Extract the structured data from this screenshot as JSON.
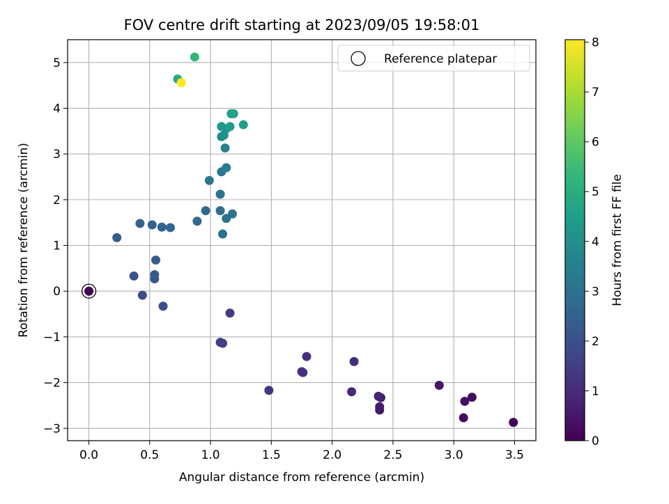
{
  "chart_data": {
    "type": "scatter",
    "title": "FOV centre drift starting at 2023/09/05 19:58:01",
    "xlabel": "Angular distance from reference (arcmin)",
    "ylabel": "Rotation from reference (arcmin)",
    "xlim": [
      -0.175,
      3.675
    ],
    "ylim": [
      -3.27,
      5.5
    ],
    "xticks": [
      0.0,
      0.5,
      1.0,
      1.5,
      2.0,
      2.5,
      3.0,
      3.5
    ],
    "xtick_labels": [
      "0.0",
      "0.5",
      "1.0",
      "1.5",
      "2.0",
      "2.5",
      "3.0",
      "3.5"
    ],
    "yticks": [
      -3,
      -2,
      -1,
      0,
      1,
      2,
      3,
      4,
      5
    ],
    "ytick_labels": [
      "−3",
      "−2",
      "−1",
      "0",
      "1",
      "2",
      "3",
      "4",
      "5"
    ],
    "grid": true,
    "legend": {
      "position": "top-right",
      "entries": [
        "Reference platepar"
      ]
    },
    "colorbar": {
      "label": "Hours from first FF file",
      "colormap": "viridis",
      "range": [
        0,
        8.05
      ],
      "ticks": [
        0,
        1,
        2,
        3,
        4,
        5,
        6,
        7,
        8
      ],
      "tick_labels": [
        "0",
        "1",
        "2",
        "3",
        "4",
        "5",
        "6",
        "7",
        "8"
      ],
      "stops": [
        "#440154",
        "#482878",
        "#3e4989",
        "#31688e",
        "#26828e",
        "#1f9e89",
        "#35b779",
        "#6ece58",
        "#b5de2b",
        "#fde725"
      ]
    },
    "reference_point": {
      "x": 0.0,
      "y": 0.0
    },
    "points": [
      {
        "x": 0.0,
        "y": 0.0,
        "c": 0.0
      },
      {
        "x": 3.49,
        "y": -2.87,
        "c": 0.1
      },
      {
        "x": 3.08,
        "y": -2.77,
        "c": 0.2
      },
      {
        "x": 3.15,
        "y": -2.32,
        "c": 0.3
      },
      {
        "x": 3.09,
        "y": -2.41,
        "c": 0.35
      },
      {
        "x": 2.88,
        "y": -2.06,
        "c": 0.5
      },
      {
        "x": 2.39,
        "y": -2.6,
        "c": 0.55
      },
      {
        "x": 2.39,
        "y": -2.53,
        "c": 0.6
      },
      {
        "x": 2.4,
        "y": -2.33,
        "c": 0.7
      },
      {
        "x": 2.38,
        "y": -2.3,
        "c": 0.75
      },
      {
        "x": 2.16,
        "y": -2.2,
        "c": 0.9
      },
      {
        "x": 2.18,
        "y": -1.54,
        "c": 1.0
      },
      {
        "x": 1.79,
        "y": -1.43,
        "c": 1.1
      },
      {
        "x": 1.76,
        "y": -1.78,
        "c": 1.15
      },
      {
        "x": 1.75,
        "y": -1.76,
        "c": 1.2
      },
      {
        "x": 1.48,
        "y": -2.17,
        "c": 1.3
      },
      {
        "x": 1.16,
        "y": -0.48,
        "c": 1.4
      },
      {
        "x": 1.08,
        "y": -1.12,
        "c": 1.5
      },
      {
        "x": 1.1,
        "y": -1.14,
        "c": 1.55
      },
      {
        "x": 0.44,
        "y": -0.09,
        "c": 1.9
      },
      {
        "x": 0.61,
        "y": -0.33,
        "c": 2.0
      },
      {
        "x": 0.37,
        "y": 0.33,
        "c": 2.1
      },
      {
        "x": 0.54,
        "y": 0.36,
        "c": 2.2
      },
      {
        "x": 0.54,
        "y": 0.27,
        "c": 2.25
      },
      {
        "x": 0.55,
        "y": 0.68,
        "c": 2.3
      },
      {
        "x": 0.23,
        "y": 1.17,
        "c": 2.4
      },
      {
        "x": 0.42,
        "y": 1.48,
        "c": 2.5
      },
      {
        "x": 0.52,
        "y": 1.45,
        "c": 2.55
      },
      {
        "x": 0.6,
        "y": 1.4,
        "c": 2.6
      },
      {
        "x": 0.67,
        "y": 1.39,
        "c": 2.65
      },
      {
        "x": 0.89,
        "y": 1.53,
        "c": 2.75
      },
      {
        "x": 0.96,
        "y": 1.76,
        "c": 2.8
      },
      {
        "x": 1.08,
        "y": 1.76,
        "c": 2.85
      },
      {
        "x": 1.1,
        "y": 1.25,
        "c": 2.9
      },
      {
        "x": 1.13,
        "y": 1.59,
        "c": 3.0
      },
      {
        "x": 1.18,
        "y": 1.69,
        "c": 3.05
      },
      {
        "x": 1.08,
        "y": 2.12,
        "c": 3.1
      },
      {
        "x": 0.99,
        "y": 2.42,
        "c": 3.2
      },
      {
        "x": 1.09,
        "y": 2.61,
        "c": 3.3
      },
      {
        "x": 1.13,
        "y": 2.7,
        "c": 3.4
      },
      {
        "x": 1.12,
        "y": 3.13,
        "c": 3.6
      },
      {
        "x": 1.09,
        "y": 3.38,
        "c": 3.9
      },
      {
        "x": 1.11,
        "y": 3.41,
        "c": 4.0
      },
      {
        "x": 1.13,
        "y": 3.55,
        "c": 4.1
      },
      {
        "x": 1.09,
        "y": 3.6,
        "c": 4.3
      },
      {
        "x": 1.16,
        "y": 3.6,
        "c": 4.4
      },
      {
        "x": 1.17,
        "y": 3.88,
        "c": 4.5
      },
      {
        "x": 1.19,
        "y": 3.88,
        "c": 4.6
      },
      {
        "x": 1.27,
        "y": 3.64,
        "c": 4.5
      },
      {
        "x": 0.73,
        "y": 4.64,
        "c": 4.9
      },
      {
        "x": 0.87,
        "y": 5.12,
        "c": 5.3
      },
      {
        "x": 0.76,
        "y": 4.56,
        "c": 8.05
      }
    ]
  }
}
